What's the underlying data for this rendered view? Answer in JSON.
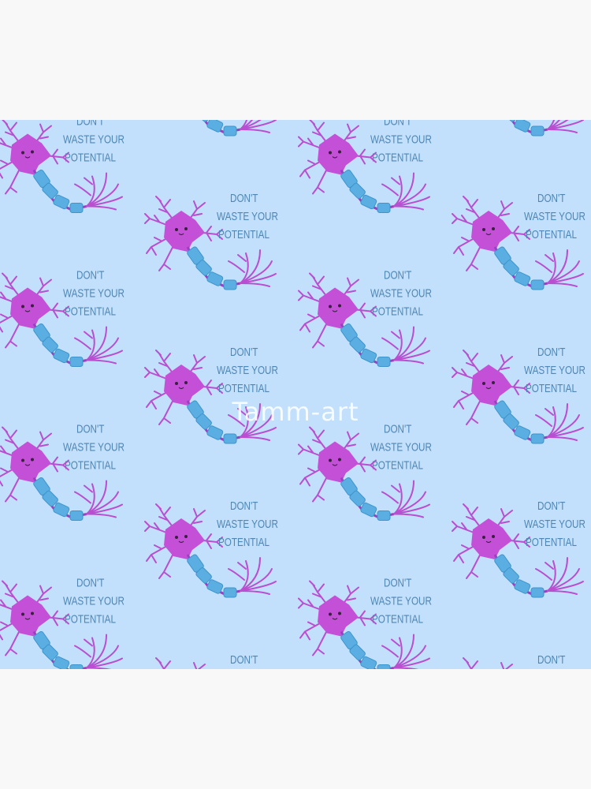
{
  "pattern": {
    "text_lines": [
      "DON'T",
      "WASTE YOUR",
      "POTENTIAL"
    ],
    "motif": "cute-neuron-icon",
    "colors": {
      "background": "#f8f8f8",
      "fabric": "#c2e0fb",
      "neuron": "#c450d8",
      "myelin": "#5aaee2",
      "text": "#4f86b4"
    }
  },
  "watermark": "Tamm-art"
}
